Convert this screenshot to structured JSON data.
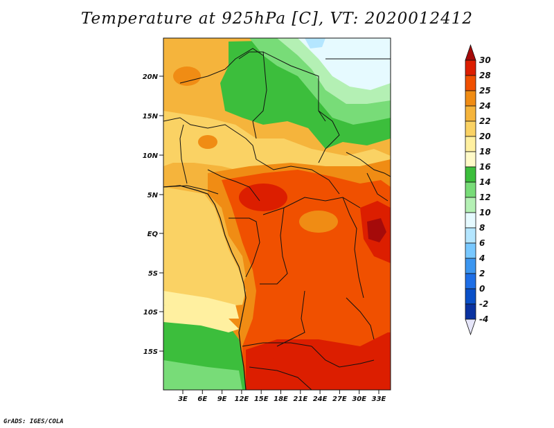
{
  "title": "Temperature at 925hPa [C], VT: 2020012412",
  "footer": "GrADS: IGES/COLA",
  "lat_ticks": [
    "20N",
    "15N",
    "10N",
    "5N",
    "EQ",
    "5S",
    "10S",
    "15S"
  ],
  "lon_ticks": [
    "3E",
    "6E",
    "9E",
    "12E",
    "15E",
    "18E",
    "21E",
    "24E",
    "27E",
    "30E",
    "33E"
  ],
  "colorbar": {
    "labels": [
      "30",
      "28",
      "25",
      "24",
      "22",
      "20",
      "18",
      "16",
      "14",
      "12",
      "10",
      "8",
      "6",
      "4",
      "2",
      "0",
      "-2",
      "-4"
    ],
    "colors": [
      "#a50a0a",
      "#dc1e00",
      "#f05000",
      "#f08c14",
      "#f5b43c",
      "#fad264",
      "#fff0a0",
      "#fffac8",
      "#3cbe3c",
      "#78dc78",
      "#b4f0b4",
      "#e6faff",
      "#b4e6ff",
      "#78c8ff",
      "#3c96f0",
      "#1e6ee6",
      "#0a50c8",
      "#0a32a0",
      "#0a1464",
      "#e6e6fa"
    ]
  }
}
